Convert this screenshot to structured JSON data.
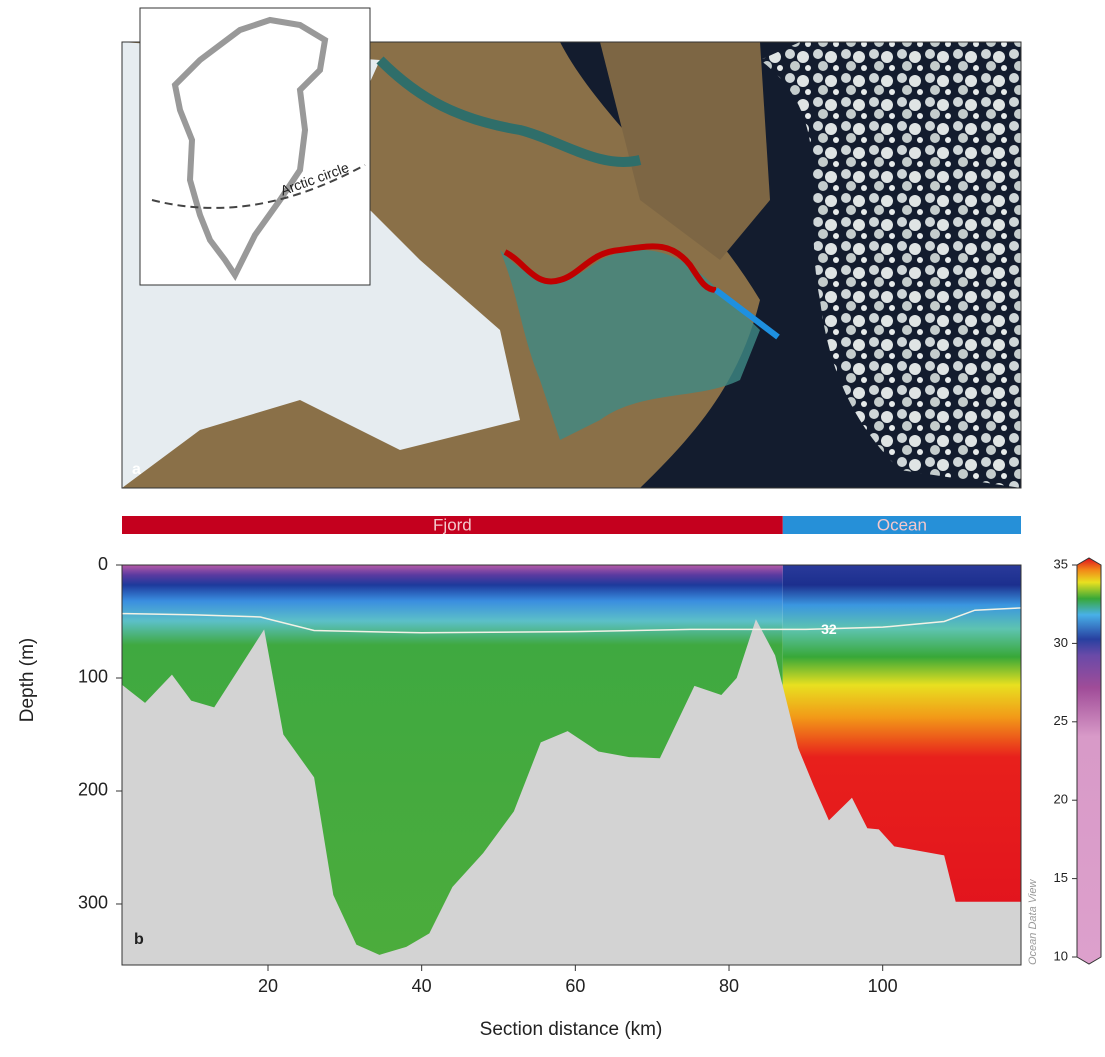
{
  "map": {
    "label": "a",
    "inset_label": "Arctic circle"
  },
  "chart_data": {
    "type": "section",
    "panel_label": "b",
    "xlabel": "Section distance (km)",
    "ylabel": "Depth (m)",
    "watermark": "Ocean Data View",
    "xlim": [
      1,
      118
    ],
    "xticks": [
      20,
      40,
      60,
      80,
      100
    ],
    "ylim": [
      0,
      354
    ],
    "yticks": [
      0,
      100,
      200,
      300
    ],
    "regions": [
      {
        "name": "Fjord",
        "start": 1,
        "end": 87,
        "color": "#c4001e"
      },
      {
        "name": "Ocean",
        "start": 87,
        "end": 118,
        "color": "#2690d8"
      }
    ],
    "bathymetry": {
      "x": [
        1,
        4,
        7.5,
        10,
        13,
        19.5,
        22,
        26,
        28.5,
        31.5,
        34.5,
        38,
        41,
        44,
        48,
        52,
        55.5,
        59,
        63,
        67,
        71,
        75.5,
        79,
        81,
        83.5,
        86,
        89,
        91,
        93,
        96,
        98,
        99.5,
        101.5,
        108,
        109.5,
        118
      ],
      "depth": [
        106,
        122,
        97,
        120,
        126,
        57,
        150,
        188,
        292,
        336,
        345,
        338,
        326,
        285,
        255,
        218,
        157,
        147,
        165,
        170,
        171,
        107,
        115,
        100,
        48,
        80,
        162,
        195,
        226,
        206,
        233,
        234,
        249,
        257,
        298,
        298
      ],
      "color": "#d3d3d3"
    },
    "contour": {
      "level": 32,
      "color": "#f2f2e6",
      "x": [
        1,
        10,
        19,
        26,
        40,
        60,
        75,
        83,
        90,
        100,
        108,
        112,
        118
      ],
      "depth": [
        43,
        44,
        46,
        58,
        60,
        59,
        57,
        57,
        57,
        55,
        50,
        40,
        38
      ]
    },
    "colorbar": {
      "lim": [
        10,
        35
      ],
      "ticks": [
        10,
        15,
        20,
        25,
        30,
        35
      ]
    }
  }
}
